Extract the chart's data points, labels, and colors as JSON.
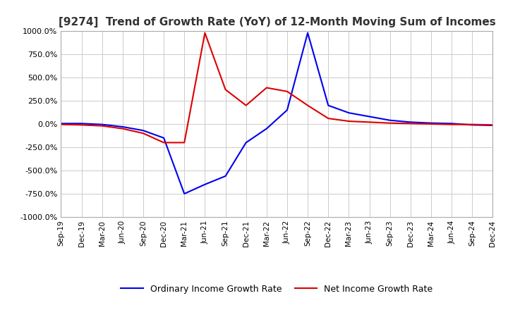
{
  "title": "[9274]  Trend of Growth Rate (YoY) of 12-Month Moving Sum of Incomes",
  "title_fontsize": 11,
  "background_color": "#ffffff",
  "grid_color": "#cccccc",
  "ylim": [
    -1000,
    1000
  ],
  "yticks": [
    1000,
    750,
    500,
    250,
    0,
    -250,
    -500,
    -750,
    -1000
  ],
  "legend_labels": [
    "Ordinary Income Growth Rate",
    "Net Income Growth Rate"
  ],
  "legend_colors": [
    "#0000ee",
    "#dd0000"
  ],
  "x_labels": [
    "Sep-19",
    "Dec-19",
    "Mar-20",
    "Jun-20",
    "Sep-20",
    "Dec-20",
    "Mar-21",
    "Jun-21",
    "Sep-21",
    "Dec-21",
    "Mar-22",
    "Jun-22",
    "Sep-22",
    "Dec-22",
    "Mar-23",
    "Jun-23",
    "Sep-23",
    "Dec-23",
    "Mar-24",
    "Jun-24",
    "Sep-24",
    "Dec-24"
  ],
  "ordinary_income": [
    5,
    5,
    -5,
    -30,
    -70,
    -150,
    -750,
    -650,
    -560,
    -200,
    -50,
    150,
    980,
    200,
    120,
    80,
    40,
    20,
    10,
    5,
    -10,
    -15
  ],
  "net_income": [
    -5,
    -10,
    -20,
    -50,
    -100,
    -200,
    -200,
    980,
    370,
    200,
    390,
    350,
    200,
    60,
    30,
    20,
    10,
    5,
    0,
    -5,
    -5,
    -10
  ]
}
